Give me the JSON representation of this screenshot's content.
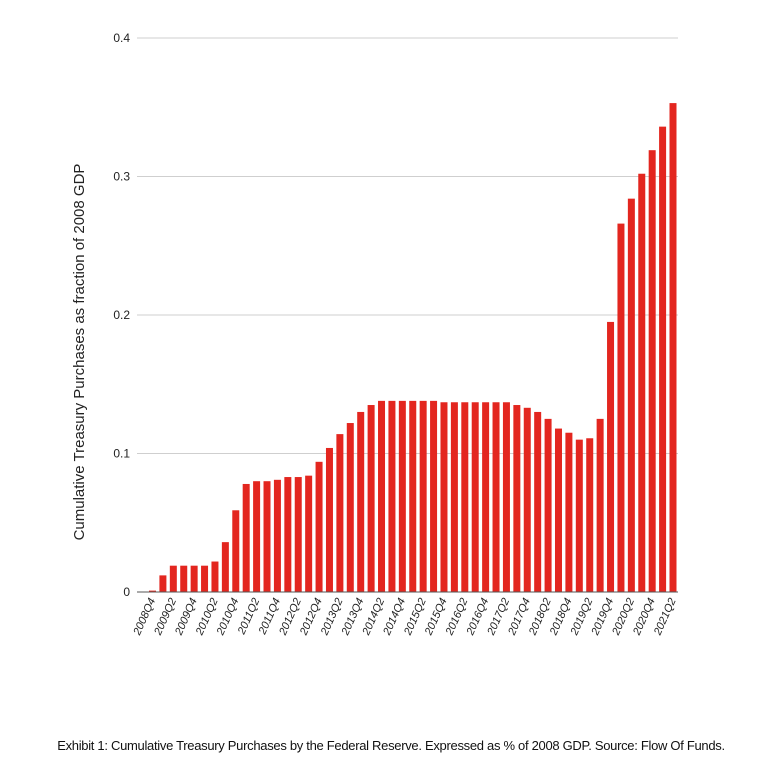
{
  "chart_data": {
    "type": "bar",
    "title": "",
    "xlabel": "",
    "ylabel": "Cumulative Treasury Purchases as fraction of 2008 GDP",
    "ylim": [
      0,
      0.4
    ],
    "yticks": [
      0,
      0.1,
      0.2,
      0.3,
      0.4
    ],
    "ytick_labels": [
      "0",
      "0.1",
      "0.2",
      "0.3",
      "0.4"
    ],
    "grid": true,
    "bar_color": "#e3261f",
    "categories": [
      "2008Q4",
      "2009Q1",
      "2009Q2",
      "2009Q3",
      "2009Q4",
      "2010Q1",
      "2010Q2",
      "2010Q3",
      "2010Q4",
      "2011Q1",
      "2011Q2",
      "2011Q3",
      "2011Q4",
      "2012Q1",
      "2012Q2",
      "2012Q3",
      "2012Q4",
      "2013Q1",
      "2013Q2",
      "2013Q3",
      "2013Q4",
      "2014Q1",
      "2014Q2",
      "2014Q3",
      "2014Q4",
      "2015Q1",
      "2015Q2",
      "2015Q3",
      "2015Q4",
      "2016Q1",
      "2016Q2",
      "2016Q3",
      "2016Q4",
      "2017Q1",
      "2017Q2",
      "2017Q3",
      "2017Q4",
      "2018Q1",
      "2018Q2",
      "2018Q3",
      "2018Q4",
      "2019Q1",
      "2019Q2",
      "2019Q3",
      "2019Q4",
      "2020Q1",
      "2020Q2",
      "2020Q3",
      "2020Q4",
      "2021Q1",
      "2021Q2"
    ],
    "shown_tick_labels": [
      "2008Q4",
      "2009Q2",
      "2009Q4",
      "2010Q2",
      "2010Q4",
      "2011Q2",
      "2011Q4",
      "2012Q2",
      "2012Q4",
      "2013Q2",
      "2013Q4",
      "2014Q2",
      "2014Q4",
      "2015Q2",
      "2015Q4",
      "2016Q2",
      "2016Q4",
      "2017Q2",
      "2017Q4",
      "2018Q2",
      "2018Q4",
      "2019Q2",
      "2019Q4",
      "2020Q2",
      "2020Q4",
      "2021Q2"
    ],
    "values": [
      0.001,
      0.012,
      0.019,
      0.019,
      0.019,
      0.019,
      0.022,
      0.036,
      0.059,
      0.078,
      0.08,
      0.08,
      0.081,
      0.083,
      0.083,
      0.084,
      0.094,
      0.104,
      0.114,
      0.122,
      0.13,
      0.135,
      0.138,
      0.138,
      0.138,
      0.138,
      0.138,
      0.138,
      0.137,
      0.137,
      0.137,
      0.137,
      0.137,
      0.137,
      0.137,
      0.135,
      0.133,
      0.13,
      0.125,
      0.118,
      0.115,
      0.11,
      0.111,
      0.125,
      0.195,
      0.266,
      0.284,
      0.302,
      0.319,
      0.336,
      0.353
    ]
  },
  "caption": "Exhibit 1: Cumulative Treasury Purchases by the Federal Reserve. Expressed as % of 2008 GDP. Source: Flow Of Funds."
}
